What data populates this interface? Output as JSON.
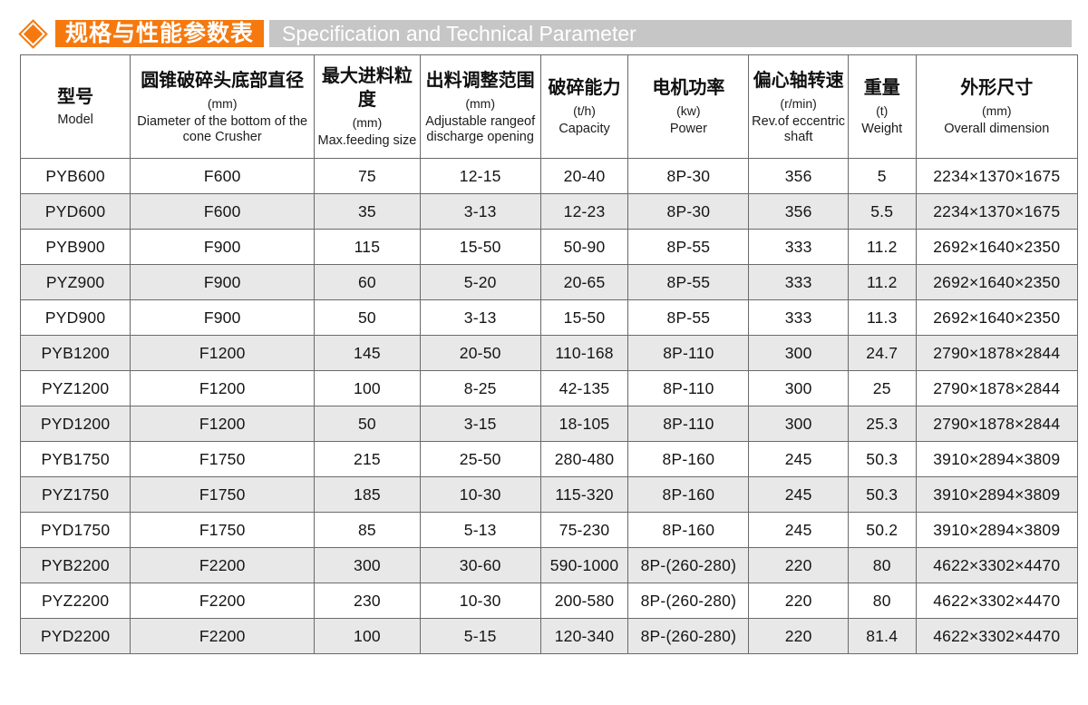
{
  "colors": {
    "accent": "#f5790f",
    "title_bar_gray": "#c6c6c6",
    "row_alt": "#e8e8e8",
    "table_border": "#6a6a6a"
  },
  "header": {
    "title_zh": "规格与性能参数表",
    "title_en": "Specification and Technical Parameter"
  },
  "table": {
    "columns": [
      {
        "zh": "型号",
        "unit": "",
        "en": "Model"
      },
      {
        "zh": "圆锥破碎头底部直径",
        "unit": "(mm)",
        "en": "Diameter of the bottom of the cone Crusher"
      },
      {
        "zh": "最大进料粒度",
        "unit": "(mm)",
        "en": "Max.feeding size"
      },
      {
        "zh": "出料调整范围",
        "unit": "(mm)",
        "en": "Adjustable rangeof discharge opening"
      },
      {
        "zh": "破碎能力",
        "unit": "(t/h)",
        "en": "Capacity"
      },
      {
        "zh": "电机功率",
        "unit": "(kw)",
        "en": "Power"
      },
      {
        "zh": "偏心轴转速",
        "unit": "(r/min)",
        "en": "Rev.of eccentric shaft"
      },
      {
        "zh": "重量",
        "unit": "(t)",
        "en": "Weight"
      },
      {
        "zh": "外形尺寸",
        "unit": "(mm)",
        "en": "Overall dimension"
      }
    ],
    "rows": [
      [
        "PYB600",
        "F600",
        "75",
        "12-15",
        "20-40",
        "8P-30",
        "356",
        "5",
        "2234×1370×1675"
      ],
      [
        "PYD600",
        "F600",
        "35",
        "3-13",
        "12-23",
        "8P-30",
        "356",
        "5.5",
        "2234×1370×1675"
      ],
      [
        "PYB900",
        "F900",
        "115",
        "15-50",
        "50-90",
        "8P-55",
        "333",
        "11.2",
        "2692×1640×2350"
      ],
      [
        "PYZ900",
        "F900",
        "60",
        "5-20",
        "20-65",
        "8P-55",
        "333",
        "11.2",
        "2692×1640×2350"
      ],
      [
        "PYD900",
        "F900",
        "50",
        "3-13",
        "15-50",
        "8P-55",
        "333",
        "11.3",
        "2692×1640×2350"
      ],
      [
        "PYB1200",
        "F1200",
        "145",
        "20-50",
        "110-168",
        "8P-110",
        "300",
        "24.7",
        "2790×1878×2844"
      ],
      [
        "PYZ1200",
        "F1200",
        "100",
        "8-25",
        "42-135",
        "8P-110",
        "300",
        "25",
        "2790×1878×2844"
      ],
      [
        "PYD1200",
        "F1200",
        "50",
        "3-15",
        "18-105",
        "8P-110",
        "300",
        "25.3",
        "2790×1878×2844"
      ],
      [
        "PYB1750",
        "F1750",
        "215",
        "25-50",
        "280-480",
        "8P-160",
        "245",
        "50.3",
        "3910×2894×3809"
      ],
      [
        "PYZ1750",
        "F1750",
        "185",
        "10-30",
        "115-320",
        "8P-160",
        "245",
        "50.3",
        "3910×2894×3809"
      ],
      [
        "PYD1750",
        "F1750",
        "85",
        "5-13",
        "75-230",
        "8P-160",
        "245",
        "50.2",
        "3910×2894×3809"
      ],
      [
        "PYB2200",
        "F2200",
        "300",
        "30-60",
        "590-1000",
        "8P-(260-280)",
        "220",
        "80",
        "4622×3302×4470"
      ],
      [
        "PYZ2200",
        "F2200",
        "230",
        "10-30",
        "200-580",
        "8P-(260-280)",
        "220",
        "80",
        "4622×3302×4470"
      ],
      [
        "PYD2200",
        "F2200",
        "100",
        "5-15",
        "120-340",
        "8P-(260-280)",
        "220",
        "81.4",
        "4622×3302×4470"
      ]
    ]
  }
}
